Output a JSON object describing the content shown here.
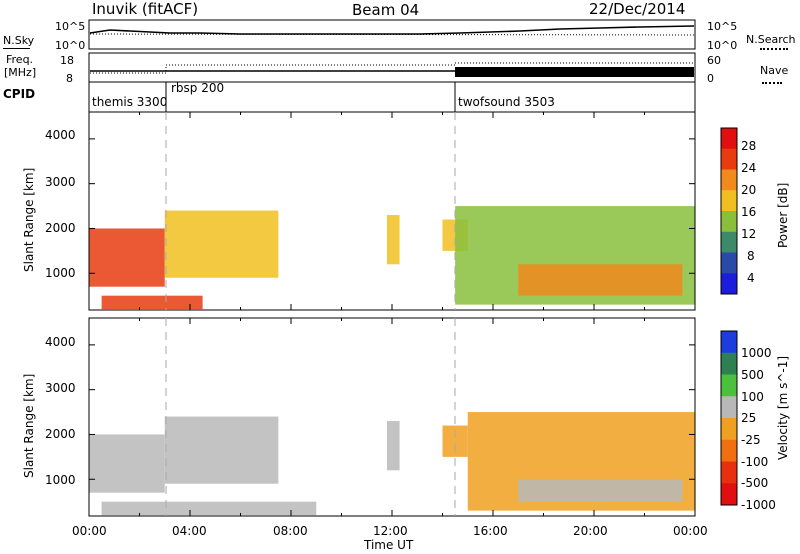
{
  "header": {
    "site": "Inuvik (fitACF)",
    "beam": "Beam 04",
    "date": "22/Dec/2014"
  },
  "labels": {
    "nsky": "N.Sky",
    "nsearch": "N.Search",
    "freq_line1": "Freq.",
    "freq_line2": "[MHz]",
    "nave": "Nave",
    "cpid": "CPID",
    "nsky_tick_top": "10^5",
    "nsky_tick_bottom": "10^0",
    "nsearch_tick_top": "10^5",
    "nsearch_tick_bottom": "10^0",
    "freq_tick_top": "18",
    "freq_tick_bottom": "8",
    "nave_tick_top": "60",
    "nave_tick_bottom": "0",
    "cpid_segments": [
      "themis 3300",
      "rbsp 200",
      "twofsound 3503"
    ]
  },
  "chart_data": [
    {
      "type": "heatmap",
      "title": "",
      "xlabel": "",
      "ylabel": "Slant Range [km]",
      "xlim": [
        "00:00",
        "00:00"
      ],
      "x_ticks": [
        "00:00",
        "04:00",
        "08:00",
        "12:00",
        "16:00",
        "20:00",
        "00:00"
      ],
      "ylim": [
        180,
        4600
      ],
      "y_ticks": [
        1000,
        2000,
        3000,
        4000
      ],
      "colorbar": {
        "label": "Power [dB]",
        "ticks": [
          "4",
          "8",
          "12",
          "16",
          "20",
          "24",
          "28"
        ],
        "range": [
          0,
          30
        ]
      },
      "echo_regions": [
        {
          "t_start": 0.0,
          "t_end": 3.0,
          "r_min": 700,
          "r_max": 2000,
          "level": 24
        },
        {
          "t_start": 3.0,
          "t_end": 7.5,
          "r_min": 900,
          "r_max": 2400,
          "level": 16
        },
        {
          "t_start": 0.5,
          "t_end": 4.5,
          "r_min": 200,
          "r_max": 500,
          "level": 26
        },
        {
          "t_start": 11.8,
          "t_end": 12.3,
          "r_min": 1200,
          "r_max": 2300,
          "level": 16
        },
        {
          "t_start": 14.0,
          "t_end": 15.0,
          "r_min": 1500,
          "r_max": 2200,
          "level": 16
        },
        {
          "t_start": 14.5,
          "t_end": 24.0,
          "r_min": 300,
          "r_max": 2500,
          "level": 12
        },
        {
          "t_start": 17.0,
          "t_end": 23.5,
          "r_min": 500,
          "r_max": 1200,
          "level": 20
        }
      ]
    },
    {
      "type": "heatmap",
      "title": "",
      "xlabel": "Time UT",
      "ylabel": "Slant Range [km]",
      "xlim": [
        "00:00",
        "00:00"
      ],
      "x_ticks": [
        "00:00",
        "04:00",
        "08:00",
        "12:00",
        "16:00",
        "20:00",
        "00:00"
      ],
      "ylim": [
        180,
        4600
      ],
      "y_ticks": [
        1000,
        2000,
        3000,
        4000
      ],
      "colorbar": {
        "label": "Velocity [m s^-1]",
        "ticks": [
          "1000",
          "500",
          "100",
          "25",
          "-25",
          "-100",
          "-500",
          "-1000"
        ],
        "range": [
          -1000,
          1000
        ]
      },
      "echo_regions": [
        {
          "t_start": 0.0,
          "t_end": 3.0,
          "r_min": 700,
          "r_max": 2000,
          "level": 100
        },
        {
          "t_start": 3.0,
          "t_end": 7.5,
          "r_min": 900,
          "r_max": 2400,
          "level": 200
        },
        {
          "t_start": 0.5,
          "t_end": 9.0,
          "r_min": 200,
          "r_max": 500,
          "level": 0
        },
        {
          "t_start": 11.8,
          "t_end": 12.3,
          "r_min": 1200,
          "r_max": 2300,
          "level": 150
        },
        {
          "t_start": 14.0,
          "t_end": 15.0,
          "r_min": 1500,
          "r_max": 2200,
          "level": -150
        },
        {
          "t_start": 15.0,
          "t_end": 24.0,
          "r_min": 300,
          "r_max": 2500,
          "level": -100
        },
        {
          "t_start": 17.0,
          "t_end": 23.5,
          "r_min": 500,
          "r_max": 1000,
          "level": 50
        }
      ]
    }
  ],
  "colors": {
    "power": [
      "#1c1cdd",
      "#2a4aa8",
      "#3c8a6a",
      "#8abf3c",
      "#f0c020",
      "#f08a1c",
      "#e83c10",
      "#e01010"
    ],
    "velocity": [
      "#1c3cdd",
      "#2f8050",
      "#4cbf3c",
      "#b8b8b8",
      "#f0a020",
      "#f07010",
      "#e83010",
      "#e01010"
    ],
    "mode_change_line": "#aaaaaa"
  }
}
